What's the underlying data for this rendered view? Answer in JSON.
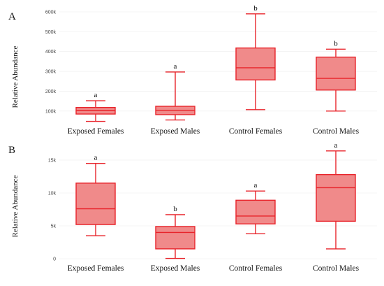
{
  "chart_data": [
    {
      "type": "box",
      "panel_label": "A",
      "ylabel": "Relative Abundance",
      "yticks": [
        "100k",
        "200k",
        "300k",
        "400k",
        "500k",
        "600k"
      ],
      "ytick_values": [
        100000,
        200000,
        300000,
        400000,
        500000,
        600000
      ],
      "ylim": [
        50000,
        600000
      ],
      "grid": true,
      "categories": [
        "Exposed Females",
        "Exposed Males",
        "Control Females",
        "Control Males"
      ],
      "boxes": [
        {
          "min": 48000,
          "q1": 85000,
          "median": 102000,
          "q3": 118000,
          "max": 152000,
          "label": "a"
        },
        {
          "min": 55000,
          "q1": 82000,
          "median": 104000,
          "q3": 124000,
          "max": 297000,
          "label": "a"
        },
        {
          "min": 107000,
          "q1": 257000,
          "median": 318000,
          "q3": 418000,
          "max": 590000,
          "label": "b"
        },
        {
          "min": 100000,
          "q1": 206000,
          "median": 265000,
          "q3": 372000,
          "max": 412000,
          "label": "b"
        }
      ]
    },
    {
      "type": "box",
      "panel_label": "B",
      "ylabel": "Relative Abundance",
      "yticks": [
        "0",
        "5k",
        "10k",
        "15k"
      ],
      "ytick_values": [
        0,
        5000,
        10000,
        15000
      ],
      "ylim": [
        0,
        16700
      ],
      "grid": true,
      "categories": [
        "Exposed Females",
        "Exposed Males",
        "Control Females",
        "Control Males"
      ],
      "boxes": [
        {
          "min": 3500,
          "q1": 5200,
          "median": 7600,
          "q3": 11500,
          "max": 14500,
          "label": "a"
        },
        {
          "min": 50,
          "q1": 1500,
          "median": 4000,
          "q3": 4900,
          "max": 6700,
          "label": "b"
        },
        {
          "min": 3800,
          "q1": 5300,
          "median": 6500,
          "q3": 8900,
          "max": 10300,
          "label": "a"
        },
        {
          "min": 1500,
          "q1": 5700,
          "median": 10800,
          "q3": 12800,
          "max": 16400,
          "label": "a"
        }
      ]
    }
  ]
}
